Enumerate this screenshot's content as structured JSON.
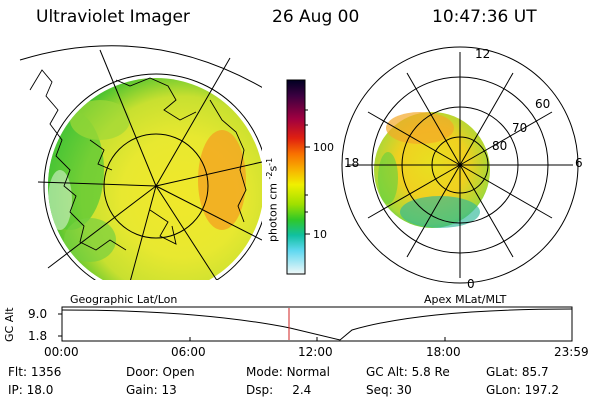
{
  "header": {
    "title": "Ultraviolet Imager",
    "date": "26 Aug 00",
    "time": "10:47:36 UT"
  },
  "colorbar": {
    "unit_label": "photon cm",
    "unit_exp1": "-2",
    "unit_mid": "s",
    "unit_exp2": "-1",
    "tick_100": "100",
    "tick_10": "10",
    "colors": [
      "#000033",
      "#3a0040",
      "#6a0050",
      "#a00040",
      "#d00020",
      "#f05000",
      "#f89000",
      "#f8c000",
      "#f0f000",
      "#b0e800",
      "#40d020",
      "#10c080",
      "#20c0d0",
      "#80e0f0",
      "#e0f4f8"
    ]
  },
  "geo_panel": {
    "label": "Geographic Lat/Lon"
  },
  "polar_panel": {
    "label": "Apex MLat/MLT",
    "mlt_12": "12",
    "mlt_18": "18",
    "mlt_6": "6",
    "mlt_0": "0",
    "lat_60": "60",
    "lat_70": "70",
    "lat_80": "80"
  },
  "altitude_plot": {
    "ylabel": "GC Alt",
    "y_top": "9.0",
    "y_bottom": "1.8",
    "x_ticks": [
      "00:00",
      "06:00",
      "12:00",
      "18:00",
      "23:59"
    ],
    "marker_color": "#d02020"
  },
  "status": {
    "flt_label": "Flt:",
    "flt_value": "1356",
    "ip_label": "IP:",
    "ip_value": "18.0",
    "door_label": "Door:",
    "door_value": "Open",
    "gain_label": "Gain:",
    "gain_value": "13",
    "mode_label": "Mode:",
    "mode_value": "Normal",
    "dsp_label": "Dsp:",
    "dsp_value": "2.4",
    "gcalt_label": "GC Alt:",
    "gcalt_value": "5.8 Re",
    "seq_label": "Seq:",
    "seq_value": "30",
    "glat_label": "GLat:",
    "glat_value": "85.7",
    "glon_label": "GLon:",
    "glon_value": "197.2"
  }
}
